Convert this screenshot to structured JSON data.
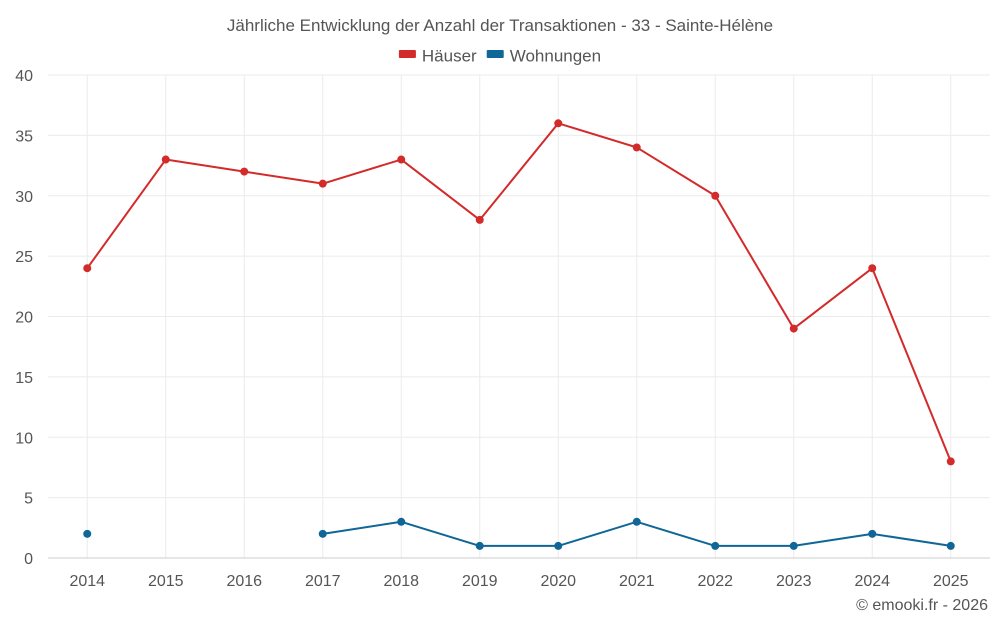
{
  "chart_data": {
    "type": "line",
    "title": "Jährliche Entwicklung der Anzahl der Transaktionen - 33 - Sainte-Hélène",
    "categories": [
      "2014",
      "2015",
      "2016",
      "2017",
      "2018",
      "2019",
      "2020",
      "2021",
      "2022",
      "2023",
      "2024",
      "2025"
    ],
    "series": [
      {
        "name": "Häuser",
        "color": "#d32a2a",
        "values": [
          24,
          33,
          32,
          31,
          33,
          28,
          36,
          34,
          30,
          19,
          24,
          8
        ]
      },
      {
        "name": "Wohnungen",
        "color": "#0f6697",
        "values": [
          2,
          null,
          null,
          2,
          3,
          1,
          1,
          3,
          1,
          1,
          2,
          1
        ]
      }
    ],
    "ylim": [
      0,
      40
    ],
    "yticks": [
      0,
      5,
      10,
      15,
      20,
      25,
      30,
      35,
      40
    ],
    "grid": true,
    "legend_position": "top-center",
    "xlabel": "",
    "ylabel": ""
  },
  "credit": "© emooki.fr - 2026"
}
